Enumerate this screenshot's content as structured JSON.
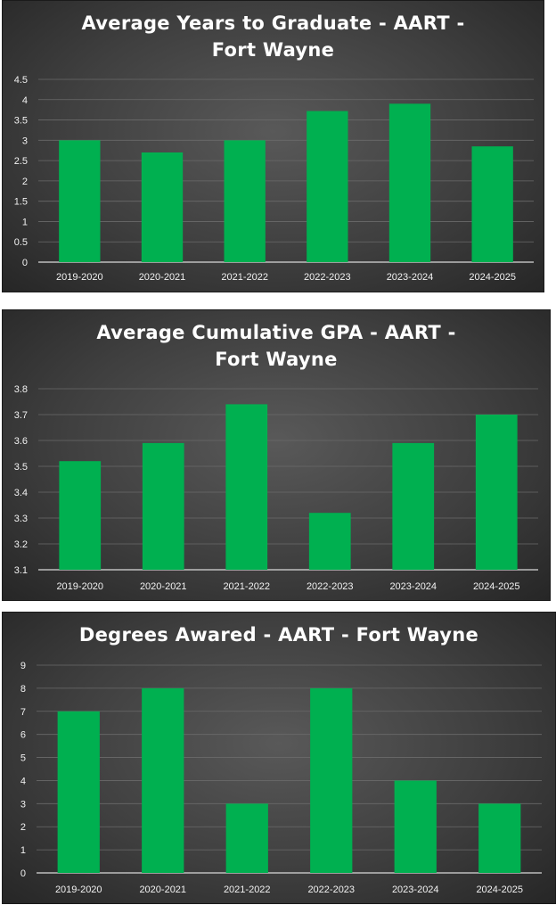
{
  "chart_data": [
    {
      "type": "bar",
      "title": "Average Years to Graduate - AART - Fort Wayne",
      "categories": [
        "2019-2020",
        "2020-2021",
        "2021-2022",
        "2022-2023",
        "2023-2024",
        "2024-2025"
      ],
      "values": [
        3.0,
        2.7,
        3.0,
        3.72,
        3.9,
        2.85
      ],
      "ylim": [
        0,
        4.5
      ],
      "yticks": [
        "0",
        "0.5",
        "1",
        "1.5",
        "2",
        "2.5",
        "3",
        "3.5",
        "4",
        "4.5"
      ],
      "grid": true,
      "bar_color": "#00b050"
    },
    {
      "type": "bar",
      "title": "Average Cumulative GPA - AART - Fort Wayne",
      "categories": [
        "2019-2020",
        "2020-2021",
        "2021-2022",
        "2022-2023",
        "2023-2024",
        "2024-2025"
      ],
      "values": [
        3.52,
        3.59,
        3.74,
        3.32,
        3.59,
        3.7
      ],
      "ylim": [
        3.1,
        3.8
      ],
      "yticks": [
        "3.1",
        "3.2",
        "3.3",
        "3.4",
        "3.5",
        "3.6",
        "3.7",
        "3.8"
      ],
      "grid": true,
      "bar_color": "#00b050"
    },
    {
      "type": "bar",
      "title": "Degrees Awared - AART - Fort Wayne",
      "categories": [
        "2019-2020",
        "2020-2021",
        "2021-2022",
        "2022-2023",
        "2023-2024",
        "2024-2025"
      ],
      "values": [
        7,
        8,
        3,
        8,
        4,
        3
      ],
      "ylim": [
        0,
        9
      ],
      "yticks": [
        "0",
        "1",
        "2",
        "3",
        "4",
        "5",
        "6",
        "7",
        "8",
        "9"
      ],
      "grid": true,
      "bar_color": "#00b050"
    }
  ]
}
